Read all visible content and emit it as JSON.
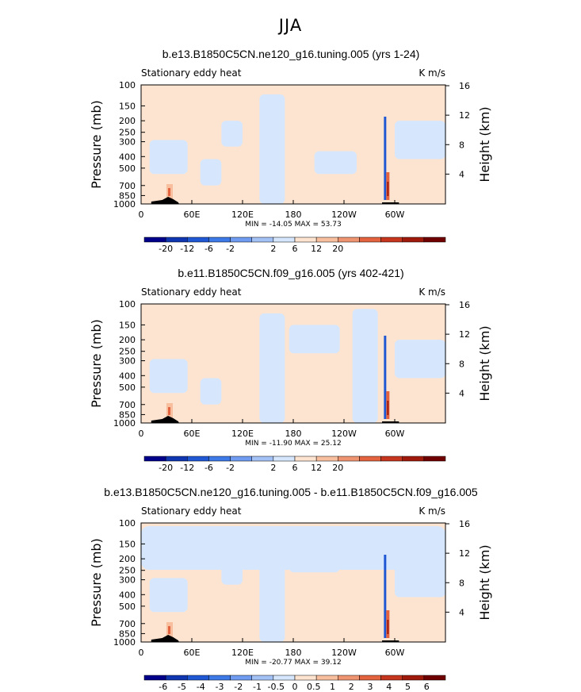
{
  "figure": {
    "suptitle": "JJA"
  },
  "colors": {
    "scale": [
      "#00008b",
      "#1035b0",
      "#2058d4",
      "#3e79e8",
      "#6f9cf0",
      "#a4c1f6",
      "#d6e7fd",
      "#fde4d0",
      "#f8bf9f",
      "#ef9470",
      "#e3633f",
      "#c6361e",
      "#a01a0c",
      "#700000"
    ]
  },
  "chart_data": [
    {
      "type": "heatmap",
      "title": "b.e13.B1850C5CN.ne120_g16.tuning.005 (yrs 1-24)",
      "left_label": "Stationary eddy heat",
      "right_label": "K m/s",
      "ylabel": "Pressure (mb)",
      "ylabel_right": "Height (km)",
      "x_ticks": [
        "0",
        "60E",
        "120E",
        "180",
        "120W",
        "60W"
      ],
      "y_ticks": [
        "100",
        "150",
        "200",
        "250",
        "300",
        "400",
        "500",
        "700",
        "850",
        "1000"
      ],
      "y_ticks_right": [
        "16",
        "12",
        "8",
        "4"
      ],
      "xlim": [
        0,
        360
      ],
      "ylim": [
        1000,
        100
      ],
      "stats": "MIN = -14.05   MAX =  53.73",
      "min": -14.05,
      "max": 53.73,
      "colorbar_labels": [
        "-20",
        "-12",
        "-6",
        "-2",
        "2",
        "6",
        "12",
        "20"
      ]
    },
    {
      "type": "heatmap",
      "title": "b.e11.B1850C5CN.f09_g16.005 (yrs 402-421)",
      "left_label": "Stationary eddy heat",
      "right_label": "K m/s",
      "ylabel": "Pressure (mb)",
      "ylabel_right": "Height (km)",
      "x_ticks": [
        "0",
        "60E",
        "120E",
        "180",
        "120W",
        "60W"
      ],
      "y_ticks": [
        "100",
        "150",
        "200",
        "250",
        "300",
        "400",
        "500",
        "700",
        "850",
        "1000"
      ],
      "y_ticks_right": [
        "16",
        "12",
        "8",
        "4"
      ],
      "xlim": [
        0,
        360
      ],
      "ylim": [
        1000,
        100
      ],
      "stats": "MIN = -11.90   MAX =  25.12",
      "min": -11.9,
      "max": 25.12,
      "colorbar_labels": [
        "-20",
        "-12",
        "-6",
        "-2",
        "2",
        "6",
        "12",
        "20"
      ]
    },
    {
      "type": "heatmap",
      "title": "b.e13.B1850C5CN.ne120_g16.tuning.005 - b.e11.B1850C5CN.f09_g16.005",
      "left_label": "Stationary eddy heat",
      "right_label": "K m/s",
      "ylabel": "Pressure (mb)",
      "ylabel_right": "Height (km)",
      "x_ticks": [
        "0",
        "60E",
        "120E",
        "180",
        "120W",
        "60W"
      ],
      "y_ticks": [
        "100",
        "150",
        "200",
        "250",
        "300",
        "400",
        "500",
        "700",
        "850",
        "1000"
      ],
      "y_ticks_right": [
        "16",
        "12",
        "8",
        "4"
      ],
      "xlim": [
        0,
        360
      ],
      "ylim": [
        1000,
        100
      ],
      "stats": "MIN = -20.77   MAX =  39.12",
      "min": -20.77,
      "max": 39.12,
      "colorbar_labels": [
        "-6",
        "-5",
        "-4",
        "-3",
        "-2",
        "-1",
        "-0.5",
        "0",
        "0.5",
        "1",
        "2",
        "3",
        "4",
        "5",
        "6"
      ]
    }
  ]
}
